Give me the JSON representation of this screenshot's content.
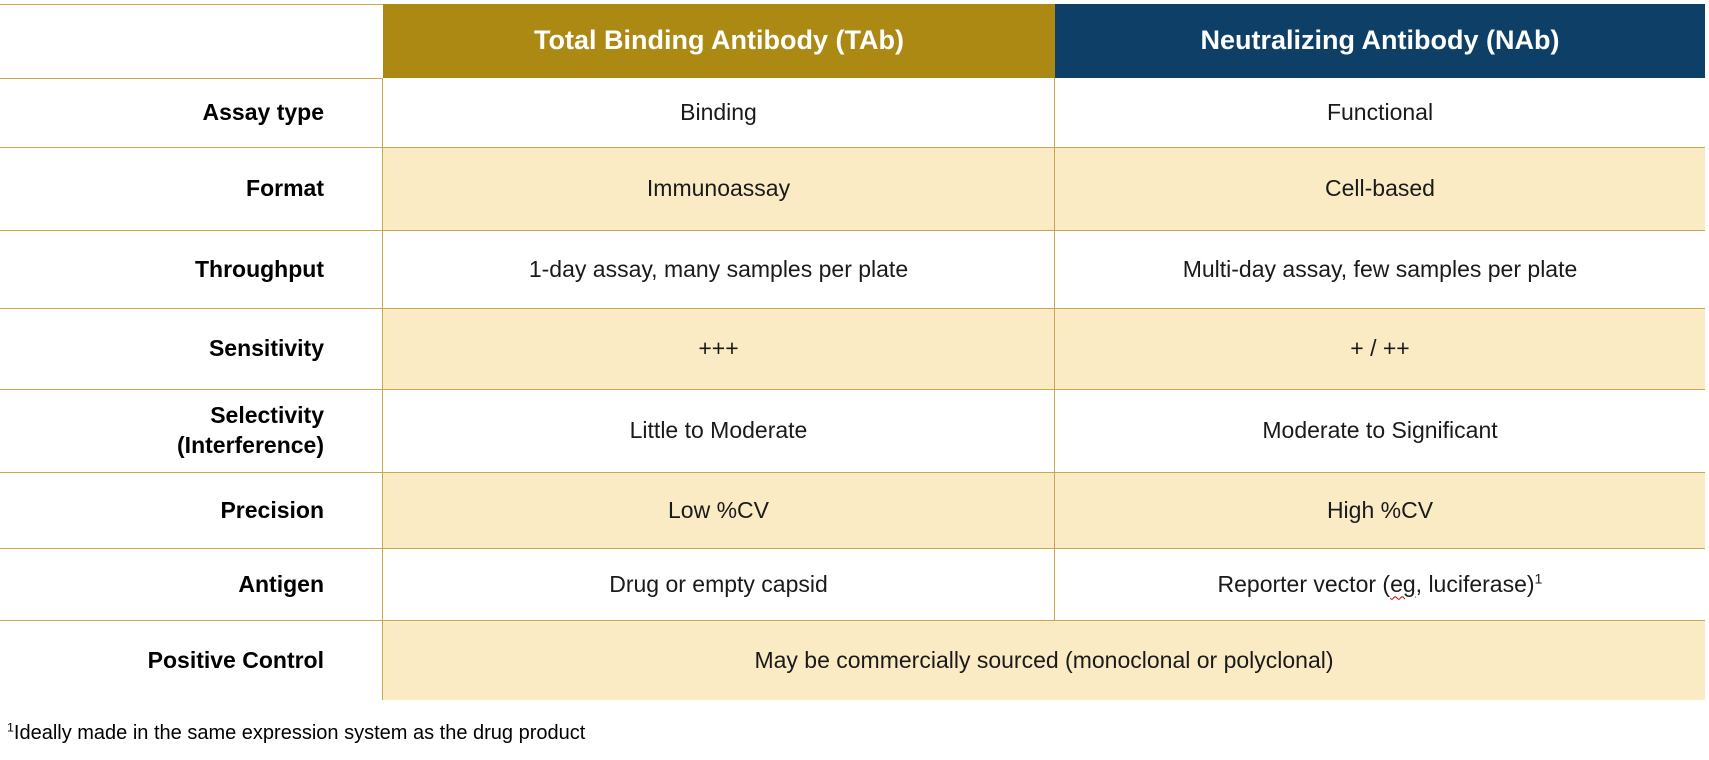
{
  "table": {
    "header": {
      "tab": "Total Binding Antibody (TAb)",
      "nab": "Neutralizing Antibody (NAb)"
    },
    "rows": [
      {
        "label": "Assay type",
        "tab": "Binding",
        "nab": "Functional"
      },
      {
        "label": "Format",
        "tab": "Immunoassay",
        "nab": "Cell-based"
      },
      {
        "label": "Throughput",
        "tab": "1-day assay, many samples per plate",
        "nab": "Multi-day assay, few samples per plate"
      },
      {
        "label": "Sensitivity",
        "tab": "+++",
        "nab": "+ / ++"
      },
      {
        "label": "Selectivity",
        "label_line2": "(Interference)",
        "tab": "Little to Moderate",
        "nab": "Moderate to Significant"
      },
      {
        "label": "Precision",
        "tab": "Low %CV",
        "nab": "High %CV"
      },
      {
        "label": "Antigen",
        "tab": "Drug or empty capsid",
        "nab_prefix": "Reporter vector (",
        "nab_misspelled": "eg",
        "nab_suffix": ", luciferase)",
        "nab_superscript": "1"
      },
      {
        "label": "Positive Control",
        "merged": "May be commercially sourced (monoclonal or polyclonal)"
      }
    ],
    "footnote": {
      "sup": "1",
      "text": "Ideally made in the same expression system as the drug product"
    }
  },
  "colors": {
    "tab_header_bg": "#AB8913",
    "nab_header_bg": "#0E4067",
    "header_text": "#FFFFFF",
    "shaded_row_bg": "#FAEBC5",
    "grid_line": "#C9A74F",
    "body_text": "#1A1A1A",
    "label_text": "#000000",
    "spellcheck_underline": "#C00000"
  }
}
